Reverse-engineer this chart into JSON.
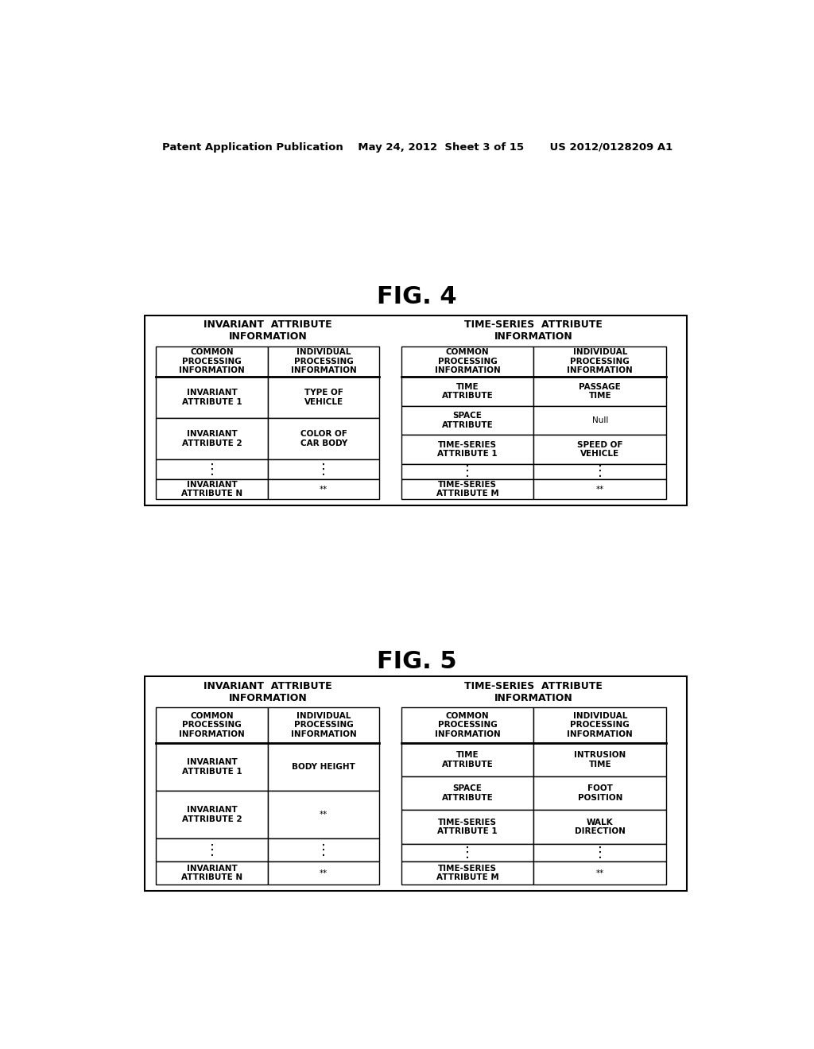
{
  "bg_color": "#ffffff",
  "text_color": "#000000",
  "patent_header": "Patent Application Publication    May 24, 2012  Sheet 3 of 15       US 2012/0128209 A1",
  "fig4_title": "FIG. 4",
  "fig5_title": "FIG. 5",
  "fig4": {
    "left_group_title": "INVARIANT  ATTRIBUTE\nINFORMATION",
    "right_group_title": "TIME-SERIES  ATTRIBUTE\nINFORMATION",
    "left_headers": [
      "COMMON\nPROCESSING\nINFORMATION",
      "INDIVIDUAL\nPROCESSING\nINFORMATION"
    ],
    "left_rows": [
      [
        "INVARIANT\nATTRIBUTE 1",
        "TYPE OF\nVEHICLE"
      ],
      [
        "INVARIANT\nATTRIBUTE 2",
        "COLOR OF\nCAR BODY"
      ],
      [
        "⋮",
        "⋮"
      ],
      [
        "INVARIANT\nATTRIBUTE N",
        "**"
      ]
    ],
    "right_headers": [
      "COMMON\nPROCESSING\nINFORMATION",
      "INDIVIDUAL\nPROCESSING\nINFORMATION"
    ],
    "right_rows": [
      [
        "TIME\nATTRIBUTE",
        "PASSAGE\nTIME"
      ],
      [
        "SPACE\nATTRIBUTE",
        "Null"
      ],
      [
        "TIME-SERIES\nATTRIBUTE 1",
        "SPEED OF\nVEHICLE"
      ],
      [
        "⋮",
        "⋮"
      ],
      [
        "TIME-SERIES\nATTRIBUTE M",
        "**"
      ]
    ]
  },
  "fig5": {
    "left_group_title": "INVARIANT  ATTRIBUTE\nINFORMATION",
    "right_group_title": "TIME-SERIES  ATTRIBUTE\nINFORMATION",
    "left_headers": [
      "COMMON\nPROCESSING\nINFORMATION",
      "INDIVIDUAL\nPROCESSING\nINFORMATION"
    ],
    "left_rows": [
      [
        "INVARIANT\nATTRIBUTE 1",
        "BODY HEIGHT"
      ],
      [
        "INVARIANT\nATTRIBUTE 2",
        "**"
      ],
      [
        "⋮",
        "⋮"
      ],
      [
        "INVARIANT\nATTRIBUTE N",
        "**"
      ]
    ],
    "right_headers": [
      "COMMON\nPROCESSING\nINFORMATION",
      "INDIVIDUAL\nPROCESSING\nINFORMATION"
    ],
    "right_rows": [
      [
        "TIME\nATTRIBUTE",
        "INTRUSION\nTIME"
      ],
      [
        "SPACE\nATTRIBUTE",
        "FOOT\nPOSITION"
      ],
      [
        "TIME-SERIES\nATTRIBUTE 1",
        "WALK\nDIRECTION"
      ],
      [
        "⋮",
        "⋮"
      ],
      [
        "TIME-SERIES\nATTRIBUTE M",
        "**"
      ]
    ]
  }
}
